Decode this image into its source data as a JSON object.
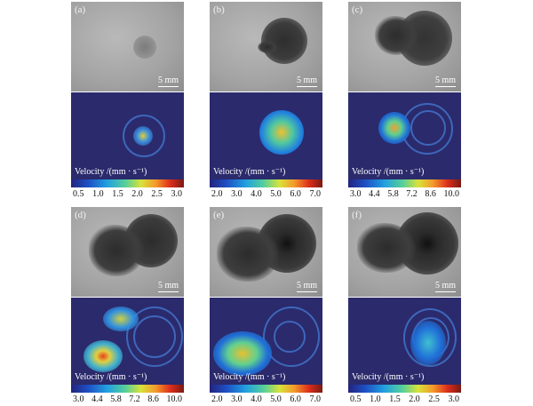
{
  "scale_bar": "5 mm",
  "colorbar_label": "Velocity /(mm · s⁻¹)",
  "colormap": [
    "#23237e",
    "#1e4fc4",
    "#21a0e0",
    "#55cf9a",
    "#d8e23a",
    "#f49a2a",
    "#dc2e1c",
    "#7a1a12"
  ],
  "panels": [
    {
      "label": "(a)",
      "ticks": [
        "0.5",
        "1.0",
        "1.5",
        "2.0",
        "2.5",
        "3.0"
      ]
    },
    {
      "label": "(b)",
      "ticks": [
        "2.0",
        "3.0",
        "4.0",
        "5.0",
        "6.0",
        "7.0"
      ]
    },
    {
      "label": "(c)",
      "ticks": [
        "3.0",
        "4.4",
        "5.8",
        "7.2",
        "8.6",
        "10.0"
      ]
    },
    {
      "label": "(d)",
      "ticks": [
        "3.0",
        "4.4",
        "5.8",
        "7.2",
        "8.6",
        "10.0"
      ]
    },
    {
      "label": "(e)",
      "ticks": [
        "2.0",
        "3.0",
        "4.0",
        "5.0",
        "6.0",
        "7.0"
      ]
    },
    {
      "label": "(f)",
      "ticks": [
        "0.5",
        "1.0",
        "1.5",
        "2.0",
        "2.5",
        "3.0"
      ]
    }
  ]
}
